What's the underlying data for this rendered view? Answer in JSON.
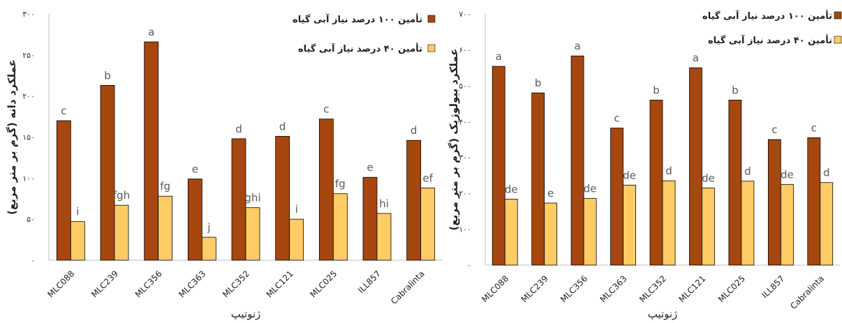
{
  "chart_data": [
    {
      "type": "bar",
      "categories": [
        "MLC088",
        "MLC239",
        "MLC356",
        "MLC363",
        "MLC352",
        "MLC121",
        "MLC025",
        "ILL857",
        "Cabralinta"
      ],
      "series": [
        {
          "name": "تأمین ۱۰۰ درصد نیاز آبی گیاه",
          "values": [
            170,
            213,
            266,
            99,
            148,
            151,
            172,
            101,
            146
          ],
          "labels": [
            "c",
            "b",
            "a",
            "e",
            "d",
            "d",
            "c",
            "e",
            "d"
          ]
        },
        {
          "name": "تأمین ۴۰ درصد نیاز آبی گیاه",
          "values": [
            47,
            67,
            78,
            28,
            64,
            50,
            81,
            57,
            88
          ],
          "labels": [
            "i",
            "fgh",
            "fg",
            "j",
            "ghi",
            "i",
            "fg",
            "hi",
            "ef"
          ]
        }
      ],
      "ylim": [
        0,
        300
      ],
      "yticks": [
        0,
        50,
        100,
        150,
        200,
        250,
        300
      ],
      "ytick_labels": [
        "۰",
        "۵۰",
        "۱۰۰",
        "۱۵۰",
        "۲۰۰",
        "۲۵۰",
        "۳۰۰"
      ],
      "xlabel": "ژنوتیپ",
      "ylabel": "عملکرد دانه (گرم بر متر مربع)",
      "colors": [
        "#A5470F",
        "#FFCC66"
      ],
      "legend": "top-right",
      "grid": false
    },
    {
      "type": "bar",
      "categories": [
        "MLC088",
        "MLC239",
        "MLC356",
        "MLC363",
        "MLC352",
        "MLC121",
        "MLC025",
        "ILL857",
        "Cabralinta"
      ],
      "series": [
        {
          "name": "تأمین ۱۰۰ درصد نیاز آبی گیاه",
          "values": [
            554,
            480,
            583,
            382,
            460,
            550,
            460,
            350,
            355
          ],
          "labels": [
            "a",
            "b",
            "a",
            "c",
            "b",
            "a",
            "b",
            "c",
            "c"
          ]
        },
        {
          "name": "تأمین ۴۰ درصد نیاز آبی گیاه",
          "values": [
            184,
            173,
            186,
            223,
            235,
            215,
            234,
            225,
            230
          ],
          "labels": [
            "de",
            "e",
            "de",
            "de",
            "d",
            "de",
            "d",
            "de",
            "d"
          ]
        }
      ],
      "ylim": [
        0,
        700
      ],
      "yticks": [
        0,
        100,
        200,
        300,
        400,
        500,
        600,
        700
      ],
      "ytick_labels": [
        "۰",
        "۱۰۰",
        "۲۰۰",
        "۳۰۰",
        "۴۰۰",
        "۵۰۰",
        "۶۰۰",
        "۷۰۰"
      ],
      "xlabel": "ژنوتیپ",
      "ylabel": "عملکرد بیولوژیک (گرم بر متر مربع)",
      "colors": [
        "#A5470F",
        "#FFCC66"
      ],
      "legend": "top-right",
      "grid": false
    }
  ]
}
